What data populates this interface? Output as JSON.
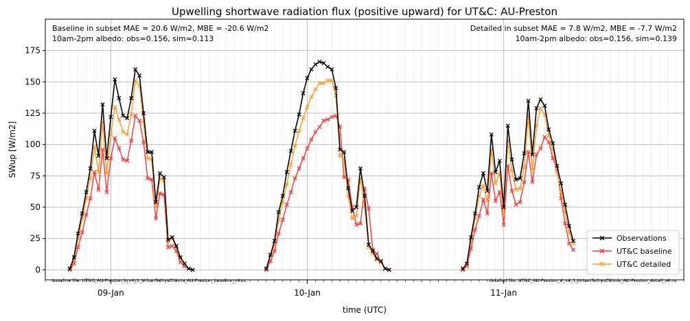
{
  "chart_data": {
    "type": "line",
    "title": "Upwelling shortwave radiation flux (positive upward) for UT&C: AU-Preston",
    "xlabel": "time (UTC)",
    "ylabel": "SWup [W/m2]",
    "xlim": [
      "2008-01-08T16:00",
      "2008-01-11T22:00"
    ],
    "ylim": [
      -8,
      200
    ],
    "grid": true,
    "legend_position": "lower-right",
    "x_ticks": [
      {
        "label": "09-Jan",
        "x": "2008-01-09T00:00"
      },
      {
        "label": "10-Jan",
        "x": "2008-01-10T00:00"
      },
      {
        "label": "11-Jan",
        "x": "2008-01-11T00:00"
      }
    ],
    "y_ticks": [
      0,
      25,
      50,
      75,
      100,
      125,
      150,
      175
    ],
    "annotations": {
      "left_line1": "Baseline in subset MAE = 20.6 W/m2, MBE = -20.6 W/m2",
      "left_line2": "10am-2pm albedo: obs=0.156, sim=0.113",
      "right_line1": "Detailed in subset MAE = 7.8 W/m2, MBE = -7.7 W/m2",
      "right_line2": "10am-2pm albedo: obs=0.156, sim=0.139",
      "baseline_file": "baseline file: UT&C_AU-Preston_b_v4_1_UrbanTethysChloris_AU-Preston_baseline_v4.nc",
      "detailed_file": "detailed file: UT&C_AU-Preston_d_v4_1_UrbanTethysChloris_AU-Preston_detail_v4.nc"
    },
    "series": [
      {
        "name": "Observations",
        "color": "#000000",
        "start": "2008-01-08T19:00",
        "step_minutes": 30,
        "segments": [
          {
            "start": "2008-01-08T19:00",
            "values": [
              1,
              10,
              29,
              45,
              62,
              81,
              111,
              91,
              132,
              89,
              122,
              152,
              137,
              123,
              121,
              137,
              160,
              155,
              125,
              94,
              94,
              54,
              77,
              74,
              24,
              26,
              19,
              10,
              5,
              1,
              0
            ]
          },
          {
            "start": "2008-01-09T19:00",
            "values": [
              1,
              12,
              23,
              46,
              59,
              78,
              95,
              111,
              124,
              141,
              153,
              160,
              164,
              166,
              165,
              162,
              160,
              145,
              96,
              94,
              65,
              47,
              50,
              81,
              59,
              20,
              15,
              9,
              7,
              1,
              0
            ]
          },
          {
            "start": "2008-01-10T19:00",
            "values": [
              1,
              5,
              26,
              45,
              66,
              77,
              63,
              108,
              78,
              87,
              50,
              115,
              88,
              72,
              73,
              93,
              135,
              92,
              129,
              136,
              131,
              112,
              101,
              83,
              69,
              52,
              35,
              23
            ]
          }
        ]
      },
      {
        "name": "UT&C baseline",
        "color": "#ff3333",
        "segments": [
          {
            "start": "2008-01-08T19:00",
            "values": [
              0,
              5,
              18,
              30,
              44,
              57,
              78,
              64,
              96,
              62,
              89,
              105,
              97,
              88,
              87,
              103,
              123,
              119,
              102,
              73,
              72,
              41,
              61,
              60,
              18,
              19,
              15,
              6,
              3,
              1,
              0
            ]
          },
          {
            "start": "2008-01-09T19:00",
            "values": [
              0,
              7,
              15,
              29,
              40,
              52,
              62,
              73,
              81,
              89,
              97,
              104,
              110,
              114,
              119,
              120,
              122,
              123,
              114,
              74,
              72,
              50,
              36,
              37,
              65,
              49,
              16,
              13,
              6,
              1,
              0
            ]
          },
          {
            "start": "2008-01-10T19:00",
            "values": [
              0,
              3,
              17,
              32,
              43,
              56,
              45,
              77,
              55,
              62,
              36,
              83,
              63,
              52,
              54,
              70,
              94,
              70,
              92,
              97,
              106,
              102,
              89,
              81,
              57,
              37,
              21,
              16
            ]
          }
        ]
      },
      {
        "name": "UT&C detailed",
        "color": "#ff9922",
        "segments": [
          {
            "start": "2008-01-08T19:00",
            "values": [
              1,
              8,
              25,
              41,
              57,
              73,
              98,
              78,
              118,
              77,
              108,
              130,
              120,
              110,
              108,
              124,
              151,
              147,
              118,
              89,
              88,
              50,
              73,
              71,
              23,
              25,
              18,
              9,
              4,
              1,
              0
            ]
          },
          {
            "start": "2008-01-09T19:00",
            "values": [
              1,
              11,
              20,
              40,
              54,
              68,
              84,
              99,
              111,
              121,
              130,
              138,
              144,
              149,
              149,
              151,
              151,
              139,
              91,
              88,
              59,
              41,
              43,
              73,
              51,
              18,
              13,
              8,
              6,
              1,
              0
            ]
          },
          {
            "start": "2008-01-10T19:00",
            "values": [
              1,
              4,
              23,
              41,
              59,
              67,
              55,
              96,
              69,
              77,
              44,
              103,
              79,
              64,
              65,
              82,
              123,
              80,
              115,
              129,
              124,
              107,
              96,
              78,
              62,
              46,
              30,
              21
            ]
          }
        ]
      }
    ]
  }
}
